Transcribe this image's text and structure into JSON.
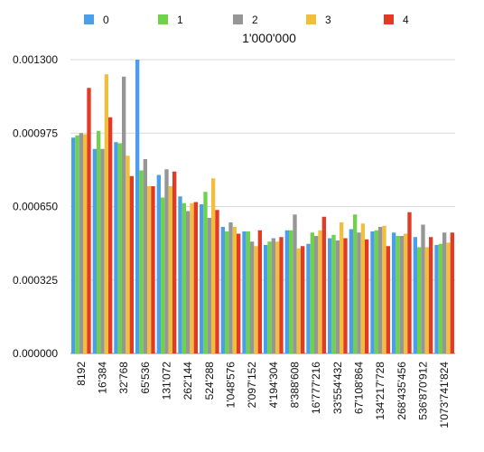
{
  "chart_data": {
    "type": "bar",
    "title": "1'000'000",
    "xlabel": "",
    "ylabel": "",
    "ylim": [
      0,
      0.0013
    ],
    "yticks": [
      "0.000000",
      "0.000325",
      "0.000650",
      "0.000975",
      "0.001300"
    ],
    "grid": true,
    "legend_position": "top",
    "categories": [
      "8192",
      "16'384",
      "32'768",
      "65'536",
      "131'072",
      "262'144",
      "524'288",
      "1'048'576",
      "2'097'152",
      "4'194'304",
      "8'388'608",
      "16'777'216",
      "33'554'432",
      "67'108'864",
      "134'217'728",
      "268'435'456",
      "536'870'912",
      "1'073'741'824"
    ],
    "series": [
      {
        "name": "0",
        "color": "#4a9eea",
        "values": [
          0.000955,
          0.000905,
          0.000935,
          0.0013,
          0.00079,
          0.000695,
          0.00066,
          0.00056,
          0.00054,
          0.00048,
          0.000545,
          0.000485,
          0.00051,
          0.00055,
          0.00054,
          0.000535,
          0.000515,
          0.00048
        ]
      },
      {
        "name": "1",
        "color": "#6ed24b",
        "values": [
          0.000965,
          0.000985,
          0.00093,
          0.00081,
          0.00069,
          0.000665,
          0.000715,
          0.00054,
          0.00054,
          0.000495,
          0.000545,
          0.000535,
          0.000525,
          0.000615,
          0.000545,
          0.00052,
          0.00047,
          0.000485
        ]
      },
      {
        "name": "2",
        "color": "#969696",
        "values": [
          0.000975,
          0.000905,
          0.001225,
          0.00086,
          0.000815,
          0.00063,
          0.0006,
          0.00058,
          0.000495,
          0.00051,
          0.000615,
          0.00052,
          0.0005,
          0.000535,
          0.00056,
          0.00052,
          0.00057,
          0.000535
        ]
      },
      {
        "name": "3",
        "color": "#f2be3d",
        "values": [
          0.00097,
          0.001235,
          0.000875,
          0.00074,
          0.00074,
          0.000665,
          0.000775,
          0.00056,
          0.000475,
          0.000495,
          0.000465,
          0.000545,
          0.00058,
          0.000575,
          0.000565,
          0.00053,
          0.00047,
          0.00049
        ]
      },
      {
        "name": "4",
        "color": "#e33a26",
        "values": [
          0.001175,
          0.001045,
          0.000785,
          0.00074,
          0.000805,
          0.00067,
          0.000635,
          0.00053,
          0.000545,
          0.000515,
          0.000475,
          0.000605,
          0.00051,
          0.000505,
          0.000475,
          0.000625,
          0.000515,
          0.000535
        ]
      }
    ]
  }
}
